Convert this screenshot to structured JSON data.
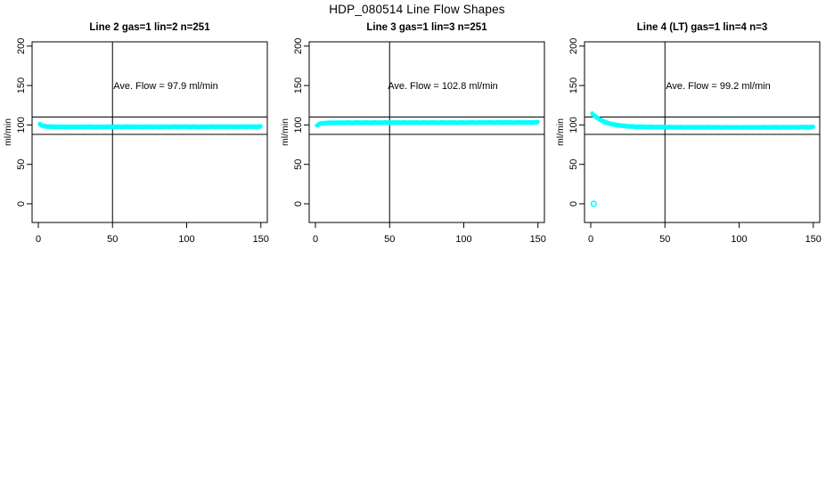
{
  "main_title": "HDP_080514  Line Flow Shapes",
  "chart_data": {
    "type": "scatter",
    "xlabel": "",
    "ylabel": "ml/min",
    "xlim": [
      0,
      150
    ],
    "ylim": [
      0,
      200
    ],
    "grid": false,
    "legend": "none",
    "point_color": "#00FFFF",
    "line_color": "#000000",
    "panels": [
      {
        "title": "Line 2 gas=1 lin=2 n=251",
        "annotation": "Ave. Flow =  97.9  ml/min",
        "ave_flow_ml_min": 97.9,
        "n": 251,
        "ylabel": "ml/min",
        "x_ticks": [
          0,
          50,
          100,
          150
        ],
        "y_ticks": [
          0,
          50,
          100,
          150,
          200
        ],
        "vline_x": 50,
        "hlines": [
          110,
          88
        ],
        "shape_points": [
          [
            1,
            100.8
          ],
          [
            2,
            99.5
          ],
          [
            3,
            98.8
          ],
          [
            5,
            98.2
          ],
          [
            8,
            97.8
          ],
          [
            12,
            97.6
          ],
          [
            20,
            97.5
          ],
          [
            30,
            97.6
          ],
          [
            40,
            97.5
          ],
          [
            50,
            97.6
          ],
          [
            60,
            97.7
          ],
          [
            70,
            97.6
          ],
          [
            80,
            97.6
          ],
          [
            90,
            97.7
          ],
          [
            100,
            97.7
          ],
          [
            110,
            97.6
          ],
          [
            120,
            97.8
          ],
          [
            130,
            97.7
          ],
          [
            140,
            97.8
          ],
          [
            150,
            97.8
          ]
        ],
        "outliers": []
      },
      {
        "title": "Line 3 gas=1 lin=3 n=251",
        "annotation": "Ave. Flow =  102.8  ml/min",
        "ave_flow_ml_min": 102.8,
        "n": 251,
        "ylabel": "ml/min",
        "x_ticks": [
          0,
          50,
          100,
          150
        ],
        "y_ticks": [
          0,
          50,
          100,
          150,
          200
        ],
        "vline_x": 50,
        "hlines": [
          110,
          88
        ],
        "shape_points": [
          [
            1,
            99.0
          ],
          [
            2,
            100.6
          ],
          [
            3,
            101.4
          ],
          [
            5,
            102.1
          ],
          [
            8,
            102.5
          ],
          [
            12,
            102.7
          ],
          [
            20,
            102.8
          ],
          [
            30,
            102.9
          ],
          [
            40,
            102.9
          ],
          [
            60,
            103.0
          ],
          [
            80,
            103.0
          ],
          [
            100,
            103.0
          ],
          [
            120,
            103.1
          ],
          [
            140,
            103.1
          ],
          [
            150,
            103.2
          ]
        ],
        "outliers": []
      },
      {
        "title": "Line 4 (LT) gas=1 lin=4 n=3",
        "annotation": "Ave. Flow =  99.2  ml/min",
        "ave_flow_ml_min": 99.2,
        "n": 3,
        "ylabel": "ml/min",
        "x_ticks": [
          0,
          50,
          100,
          150
        ],
        "y_ticks": [
          0,
          50,
          100,
          150,
          200
        ],
        "vline_x": 50,
        "hlines": [
          110,
          88
        ],
        "shape_points": [
          [
            1,
            114
          ],
          [
            2,
            112.5
          ],
          [
            3,
            111
          ],
          [
            4,
            109.5
          ],
          [
            6,
            107
          ],
          [
            8,
            105
          ],
          [
            10,
            103.3
          ],
          [
            13,
            101.5
          ],
          [
            16,
            100.3
          ],
          [
            20,
            99.2
          ],
          [
            25,
            98.3
          ],
          [
            30,
            97.8
          ],
          [
            40,
            97.4
          ],
          [
            50,
            97.2
          ],
          [
            70,
            97.0
          ],
          [
            100,
            96.9
          ],
          [
            130,
            97.0
          ],
          [
            150,
            97.2
          ]
        ],
        "outliers": [
          [
            2,
            0
          ]
        ]
      }
    ]
  }
}
